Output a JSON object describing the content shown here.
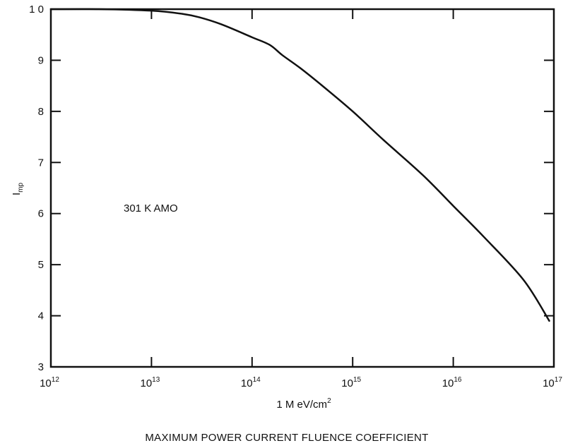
{
  "chart_data": {
    "type": "line",
    "title": "MAXIMUM POWER CURRENT FLUENCE COEFFICIENT",
    "xlabel": {
      "main": "1 M eV/cm",
      "superscript": "2"
    },
    "ylabel": {
      "main": "I",
      "subscript": "mp"
    },
    "xscale": "log",
    "xlim": [
      1000000000000.0,
      1e+17
    ],
    "ylim": [
      3,
      10
    ],
    "x_ticks": [
      {
        "mantissa": "10",
        "exponent": "12",
        "value": 1000000000000.0
      },
      {
        "mantissa": "10",
        "exponent": "13",
        "value": 10000000000000.0
      },
      {
        "mantissa": "10",
        "exponent": "14",
        "value": 100000000000000.0
      },
      {
        "mantissa": "10",
        "exponent": "15",
        "value": 1000000000000000.0
      },
      {
        "mantissa": "10",
        "exponent": "16",
        "value": 1e+16
      },
      {
        "mantissa": "10",
        "exponent": "17",
        "value": 1e+17
      }
    ],
    "y_ticks": [
      {
        "label": "3",
        "value": 3
      },
      {
        "label": "4",
        "value": 4
      },
      {
        "label": "5",
        "value": 5
      },
      {
        "label": "6",
        "value": 6
      },
      {
        "label": "7",
        "value": 7
      },
      {
        "label": "8",
        "value": 8
      },
      {
        "label": "9",
        "value": 9
      },
      {
        "label": "1 0",
        "value": 10
      }
    ],
    "annotation": "301 K AMO",
    "grid": false,
    "series": [
      {
        "color": "#111111",
        "x": [
          1000000000000.0,
          3000000000000.0,
          10000000000000.0,
          20000000000000.0,
          30000000000000.0,
          50000000000000.0,
          100000000000000.0,
          150000000000000.0,
          200000000000000.0,
          300000000000000.0,
          500000000000000.0,
          1000000000000000.0,
          2000000000000000.0,
          5000000000000000.0,
          1e+16,
          2e+16,
          5e+16,
          9e+16
        ],
        "y": [
          10.0,
          10.0,
          9.97,
          9.91,
          9.84,
          9.7,
          9.45,
          9.3,
          9.1,
          8.85,
          8.5,
          8.0,
          7.45,
          6.75,
          6.15,
          5.55,
          4.7,
          3.9
        ]
      }
    ]
  }
}
